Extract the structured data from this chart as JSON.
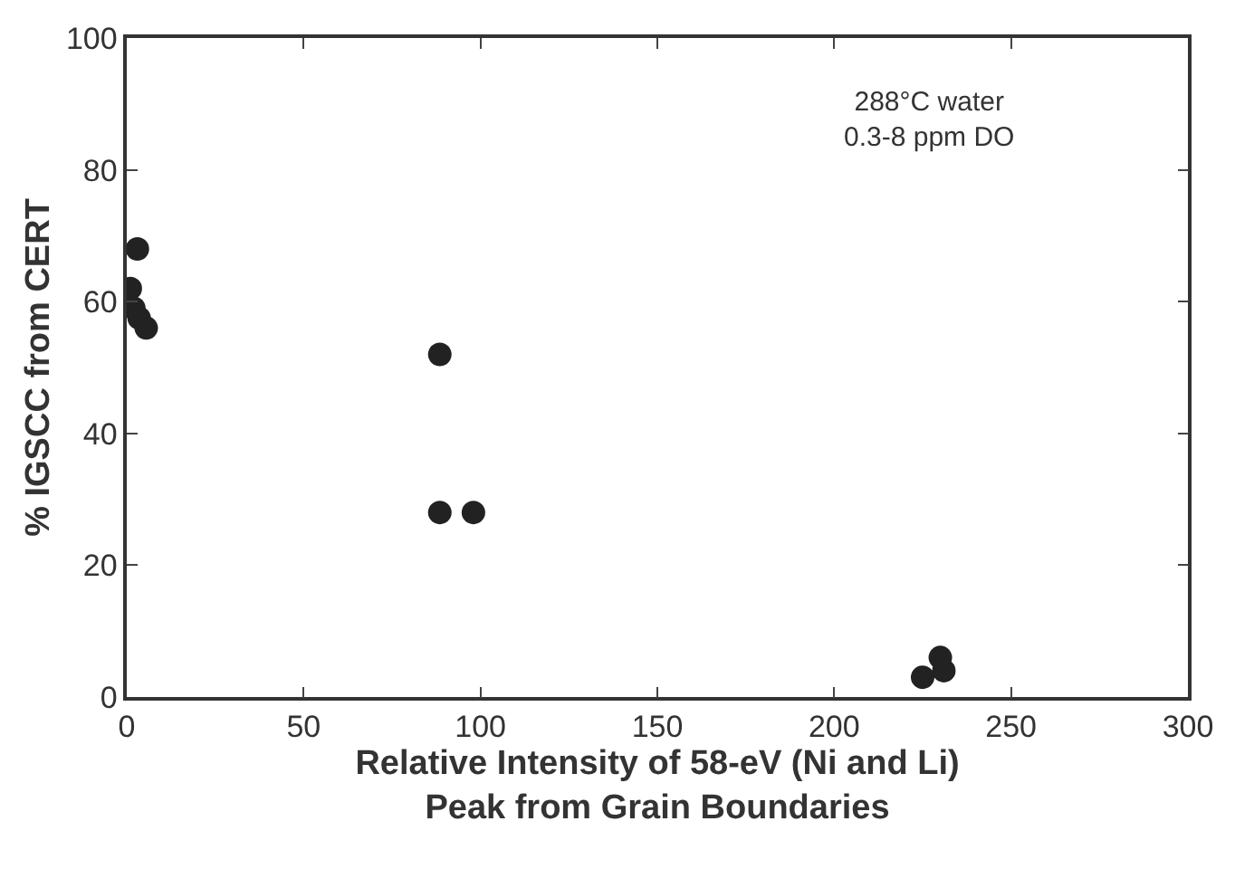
{
  "chart_data": {
    "type": "scatter",
    "xlabel": "Relative Intensity of 58-eV (Ni and Li)\nPeak from Grain Boundaries",
    "ylabel": "% IGSCC from CERT",
    "x": [
      3,
      1,
      2,
      3.5,
      5.5,
      88.5,
      88.5,
      98,
      225,
      229,
      231,
      230
    ],
    "values": [
      68,
      62,
      59,
      57.5,
      56,
      52,
      28,
      28,
      3,
      null,
      4,
      6
    ],
    "color": "#222222",
    "marker": "circle",
    "xlim": [
      0,
      300
    ],
    "ylim": [
      0,
      100
    ],
    "xticks": [
      0,
      50,
      100,
      150,
      200,
      250,
      300
    ],
    "yticks": [
      0,
      20,
      40,
      60,
      80,
      100
    ],
    "legend": false,
    "annotations": [
      "288°C water\n0.3-8 ppm DO"
    ]
  }
}
